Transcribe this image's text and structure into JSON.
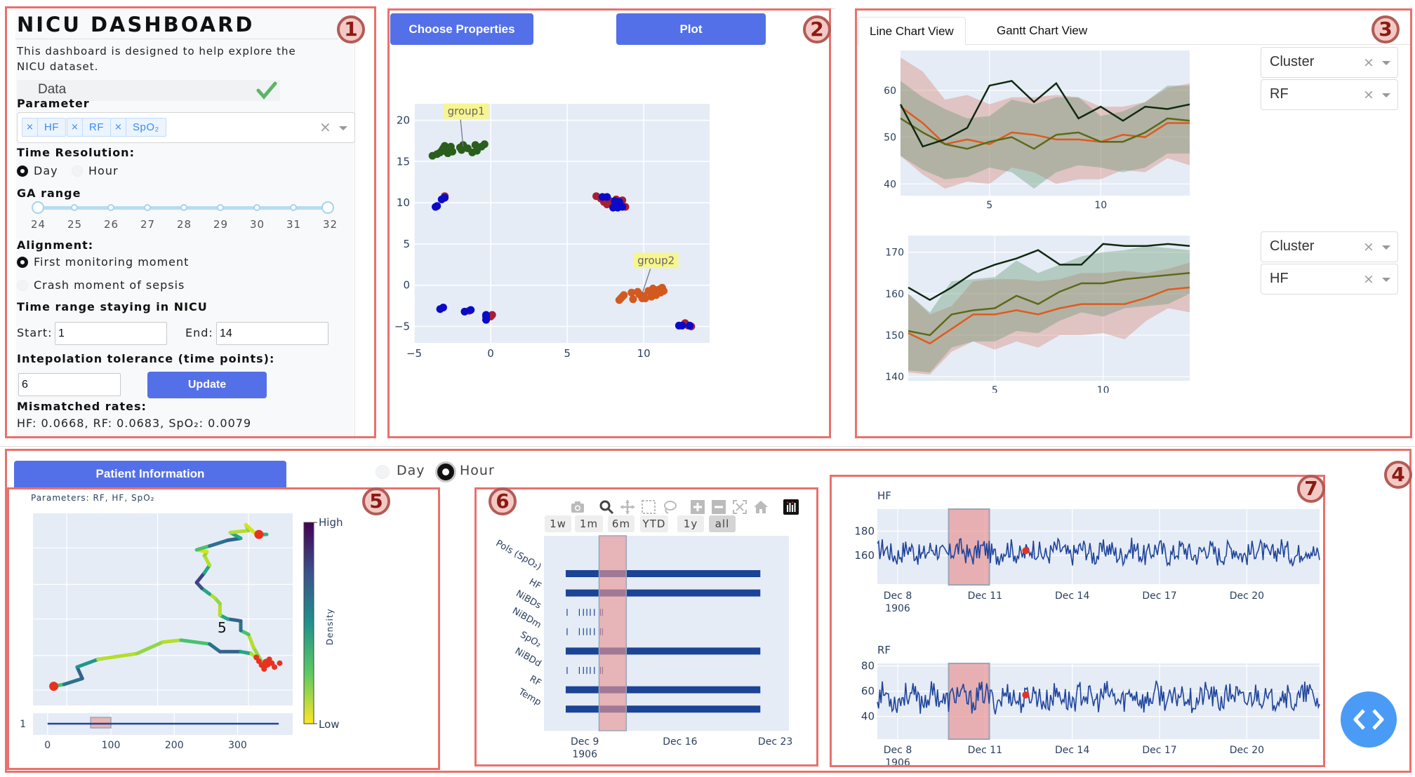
{
  "panel1": {
    "title": "NICU DASHBOARD",
    "description": "This dashboard is designed to help explore the NICU dataset.",
    "data_label": "Data",
    "data_status_icon": "checkmark-icon",
    "parameter_label": "Parameter",
    "parameter_tags": [
      "HF",
      "RF",
      "SpO₂"
    ],
    "time_resolution_label": "Time Resolution:",
    "time_resolution_options": [
      "Day",
      "Hour"
    ],
    "time_resolution_selected": "Day",
    "ga_range_label": "GA range",
    "ga_range_marks": [
      "24",
      "25",
      "26",
      "27",
      "28",
      "29",
      "30",
      "31",
      "32"
    ],
    "ga_range_value": [
      24,
      32
    ],
    "alignment_label": "Alignment:",
    "alignment_options": [
      "First monitoring moment",
      "Crash moment of sepsis"
    ],
    "alignment_selected": "First monitoring moment",
    "time_range_label": "Time range staying in NICU",
    "start_label": "Start:",
    "start_value": "1",
    "end_label": "End:",
    "end_value": "14",
    "interp_label": "Intepolation tolerance (time points):",
    "interp_value": "6",
    "update_button": "Update",
    "mismatch_label": "Mismatched rates:",
    "mismatch_values": "HF: 0.0668, RF: 0.0683, SpO₂: 0.0079"
  },
  "panel2": {
    "choose_button": "Choose Properties",
    "plot_button": "Plot"
  },
  "panel3": {
    "tabs": [
      "Line Chart View",
      "Gantt Chart View"
    ],
    "active_tab": "Line Chart View",
    "dropdowns": [
      {
        "group": "Cluster",
        "param": "RF"
      },
      {
        "group": "Cluster",
        "param": "HF"
      }
    ]
  },
  "panel4": {
    "patient_button": "Patient Information",
    "resolution_options": [
      "Day",
      "Hour"
    ],
    "resolution_selected": "Hour"
  },
  "panel5": {
    "subtitle": "Parameters: RF, HF, SpO₂",
    "center_label": "5",
    "colorbar_title": "Density",
    "colorbar_high": "High",
    "colorbar_low": "Low"
  },
  "panel6": {
    "modebar_icons": [
      "camera-icon",
      "zoom-icon",
      "pan-icon",
      "box-select-icon",
      "lasso-icon",
      "zoom-in-icon",
      "zoom-out-icon",
      "autoscale-icon",
      "home-icon",
      "plotly-logo-icon"
    ],
    "range_buttons": [
      "1w",
      "1m",
      "6m",
      "YTD",
      "1y",
      "all"
    ],
    "active_range": "all"
  },
  "region_badges": [
    "1",
    "2",
    "3",
    "4",
    "5",
    "6",
    "7"
  ],
  "colors": {
    "accent_blue": "#5470e8",
    "annotation_red": "#e8716d",
    "plot_bg": "#e5ecf6",
    "trace_blue": "#1f449c",
    "highlight": "#e8b4b4",
    "fab_blue": "#4a9bf5"
  },
  "chart_data": [
    {
      "id": "scatter",
      "type": "scatter",
      "title": "",
      "xlim": [
        -5,
        14.3
      ],
      "ylim": [
        -7,
        22
      ],
      "xticks": [
        -5,
        0,
        5,
        10
      ],
      "yticks": [
        -5,
        0,
        5,
        10,
        15,
        20
      ],
      "annotations": [
        {
          "text": "group1",
          "x": -1.8,
          "y": 16.8,
          "label_x": -1.6,
          "label_y": 21.1
        },
        {
          "text": "group2",
          "x": 9.9,
          "y": -1.0,
          "label_x": 10.8,
          "label_y": 3.0
        }
      ],
      "series": [
        {
          "name": "group1",
          "color": "#2a5e1c",
          "points": [
            [
              -3.8,
              15.7
            ],
            [
              -3.5,
              15.9
            ],
            [
              -3.3,
              16.1
            ],
            [
              -3.2,
              16.3
            ],
            [
              -3.1,
              16.6
            ],
            [
              -3.0,
              16.9
            ],
            [
              -2.9,
              16.2
            ],
            [
              -2.8,
              16.0
            ],
            [
              -2.7,
              16.5
            ],
            [
              -2.6,
              16.8
            ],
            [
              -2.5,
              16.2
            ],
            [
              -2.0,
              16.7
            ],
            [
              -1.8,
              17.0
            ],
            [
              -1.9,
              16.4
            ],
            [
              -1.2,
              16.1
            ],
            [
              -1.0,
              17.0
            ],
            [
              -0.9,
              16.3
            ],
            [
              -0.6,
              16.8
            ],
            [
              -0.4,
              17.1
            ],
            [
              -1.5,
              16.6
            ]
          ]
        },
        {
          "name": "group2",
          "color": "#d35a1f",
          "points": [
            [
              8.4,
              -1.8
            ],
            [
              8.5,
              -1.6
            ],
            [
              8.6,
              -1.4
            ],
            [
              8.7,
              -1.2
            ],
            [
              9.2,
              -0.9
            ],
            [
              9.3,
              -1.7
            ],
            [
              9.6,
              -0.8
            ],
            [
              9.7,
              -1.1
            ],
            [
              9.9,
              -1.6
            ],
            [
              10.0,
              -1.3
            ],
            [
              10.1,
              -1.6
            ],
            [
              10.3,
              -0.7
            ],
            [
              10.5,
              -1.0
            ],
            [
              10.6,
              -0.4
            ],
            [
              10.7,
              -0.8
            ],
            [
              10.8,
              -1.2
            ],
            [
              11.0,
              -0.5
            ],
            [
              11.1,
              -0.9
            ],
            [
              11.2,
              -0.3
            ],
            [
              11.3,
              -0.7
            ],
            [
              10.5,
              -1.4
            ]
          ]
        },
        {
          "name": "cluster-red",
          "color": "#a52033",
          "points": [
            [
              6.9,
              10.8
            ],
            [
              7.2,
              10.5
            ],
            [
              7.4,
              10.1
            ],
            [
              7.6,
              9.8
            ],
            [
              7.8,
              10.2
            ],
            [
              8.0,
              9.6
            ],
            [
              8.2,
              10.4
            ],
            [
              8.4,
              9.8
            ],
            [
              8.6,
              10.3
            ],
            [
              8.8,
              9.5
            ],
            [
              -3.0,
              10.8
            ],
            [
              0.1,
              -3.6
            ],
            [
              0.0,
              -3.8
            ],
            [
              -1.4,
              -3.1
            ],
            [
              12.7,
              -4.6
            ],
            [
              12.9,
              -4.9
            ],
            [
              13.1,
              -5.0
            ]
          ]
        },
        {
          "name": "cluster-blue",
          "color": "#0a0ac8",
          "points": [
            [
              7.3,
              10.7
            ],
            [
              7.6,
              10.7
            ],
            [
              8.1,
              10.2
            ],
            [
              8.4,
              10.1
            ],
            [
              8.6,
              9.5
            ],
            [
              8.0,
              9.4
            ],
            [
              8.3,
              9.4
            ],
            [
              -3.0,
              10.6
            ],
            [
              -3.2,
              10.4
            ],
            [
              -3.6,
              9.5
            ],
            [
              -3.5,
              9.6
            ],
            [
              -3.3,
              -2.9
            ],
            [
              -3.1,
              -2.7
            ],
            [
              -1.7,
              -3.2
            ],
            [
              -1.3,
              -3.0
            ],
            [
              -0.3,
              -3.8
            ],
            [
              -0.3,
              -4.2
            ],
            [
              -0.3,
              -3.6
            ],
            [
              12.3,
              -4.9
            ],
            [
              12.5,
              -4.9
            ],
            [
              13.0,
              -4.9
            ]
          ]
        }
      ]
    },
    {
      "id": "rf-band",
      "type": "area",
      "title": "RF",
      "xlim": [
        1,
        14
      ],
      "ylim": [
        37.5,
        68.5
      ],
      "xticks": [
        5,
        10
      ],
      "yticks": [
        40,
        50,
        60
      ],
      "x": [
        1,
        2,
        3,
        4,
        5,
        6,
        7,
        8,
        9,
        10,
        11,
        12,
        13,
        14
      ],
      "series": [
        {
          "name": "cluster-dark",
          "color": "#0f2a10",
          "values": [
            57,
            48,
            49.5,
            52,
            61,
            62,
            57.5,
            61.5,
            54,
            56.5,
            53.5,
            56.5,
            56,
            57
          ]
        },
        {
          "name": "cluster-olive",
          "color": "#5a6a1a",
          "values": [
            54,
            51,
            48.5,
            47.5,
            49,
            50,
            47.5,
            50.5,
            51,
            49,
            49,
            51,
            54,
            53.5
          ]
        },
        {
          "name": "cluster-orange",
          "color": "#e05a1e",
          "values": [
            56.5,
            53,
            48.5,
            49.5,
            48.5,
            51,
            50.5,
            49.5,
            49.5,
            49,
            50.5,
            50,
            53,
            53
          ]
        }
      ],
      "bands": [
        {
          "name": "orange-band",
          "color": "rgba(214,120,100,0.35)",
          "upper": [
            67,
            64,
            58,
            59,
            57,
            58.5,
            58.5,
            59,
            58.5,
            56.5,
            56.5,
            57.5,
            60.5,
            61.5
          ],
          "lower": [
            46,
            42,
            39,
            40.5,
            40,
            43.5,
            42.5,
            40,
            41,
            41,
            43,
            42.5,
            45.5,
            44
          ]
        },
        {
          "name": "green-band",
          "color": "rgba(100,150,110,0.38)",
          "upper": [
            62,
            58.5,
            56,
            54,
            54.5,
            58,
            57,
            58.5,
            58.5,
            54.5,
            55.5,
            57.5,
            61,
            61
          ],
          "lower": [
            46,
            43,
            41,
            41.5,
            43.5,
            42.5,
            39,
            42.5,
            44,
            43.5,
            42.5,
            43.5,
            46.5,
            46.5
          ]
        }
      ]
    },
    {
      "id": "hf-band",
      "type": "area",
      "title": "HF",
      "xlim": [
        1,
        14
      ],
      "ylim": [
        139,
        174
      ],
      "xticks": [
        5,
        10
      ],
      "yticks": [
        140,
        150,
        160,
        170
      ],
      "x": [
        1,
        2,
        3,
        4,
        5,
        6,
        7,
        8,
        9,
        10,
        11,
        12,
        13,
        14
      ],
      "series": [
        {
          "name": "cluster-dark",
          "color": "#0f2a10",
          "values": [
            161.5,
            158.5,
            161.5,
            165,
            167,
            168.5,
            170.5,
            167,
            167,
            172,
            171.5,
            171.5,
            172,
            171.5
          ]
        },
        {
          "name": "cluster-olive",
          "color": "#5a6a1a",
          "values": [
            151,
            150,
            155,
            156,
            156.5,
            159.5,
            157.5,
            160.5,
            162.5,
            162.5,
            163.5,
            164,
            164.5,
            165
          ]
        },
        {
          "name": "cluster-orange",
          "color": "#e05a1e",
          "values": [
            150.5,
            148,
            151.5,
            155,
            155,
            156,
            155,
            156.5,
            157.5,
            157.5,
            157.5,
            159,
            161,
            161.5
          ]
        }
      ],
      "bands": [
        {
          "name": "orange-band",
          "color": "rgba(214,120,100,0.35)",
          "upper": [
            160,
            155,
            157,
            163,
            163.5,
            163.5,
            163,
            163.5,
            165,
            165,
            165.5,
            165,
            166,
            167.5
          ],
          "lower": [
            141,
            140.5,
            146,
            148.5,
            146.5,
            148.5,
            147,
            150,
            150,
            150.5,
            149,
            153.5,
            156.5,
            155.5
          ]
        },
        {
          "name": "green-band",
          "color": "rgba(100,150,110,0.38)",
          "upper": [
            160,
            155.5,
            163,
            163.5,
            164,
            168,
            165,
            167,
            169,
            170,
            170.5,
            171.5,
            171,
            170.5
          ],
          "lower": [
            141.5,
            141,
            147,
            148.5,
            148.5,
            151,
            150.5,
            153.5,
            155.5,
            154.5,
            156.5,
            157,
            157.5,
            160
          ]
        }
      ]
    },
    {
      "id": "trajectory",
      "type": "line",
      "title": "Parameters: RF, HF, SpO₂",
      "xlim": [
        -23,
        387
      ],
      "xticks": [
        0,
        100,
        200,
        300
      ],
      "timeline_ytick": "1",
      "timeline_range": [
        0,
        365
      ],
      "timeline_highlight": [
        68,
        100
      ],
      "colorbar": {
        "title": "Density",
        "high": "High",
        "low": "Low",
        "colors": [
          "#fde725",
          "#5ec962",
          "#21918c",
          "#3b528b",
          "#440154"
        ]
      },
      "markers": [
        {
          "name": "start",
          "color": "#e8321f",
          "x": 0.08,
          "y": 0.9
        },
        {
          "name": "end",
          "color": "#e8321f",
          "x": 0.87,
          "y": 0.11
        },
        {
          "name": "cluster",
          "color": "#e8321f",
          "x": 0.9,
          "y": 0.78
        }
      ]
    },
    {
      "id": "gantt",
      "type": "bar",
      "xlim": [
        "1906-12-06",
        "1906-12-24"
      ],
      "xticks": [
        "Dec 9\n1906",
        "Dec 16",
        "Dec 23"
      ],
      "highlight": [
        "1906-12-10",
        "1906-12-12"
      ],
      "categories": [
        "Pols (SpO₂)",
        "HF",
        "NiBDs",
        "NiBDm",
        "SpO₂",
        "NiBDd",
        "RF",
        "Temp"
      ],
      "rows": [
        {
          "label": "Pols (SpO₂)",
          "kind": "bar",
          "start": 7.6,
          "end": 21.9
        },
        {
          "label": "HF",
          "kind": "bar",
          "start": 7.6,
          "end": 21.9
        },
        {
          "label": "NiBDs",
          "kind": "ticks",
          "ticks": [
            7.7,
            8.6,
            8.9,
            9.15,
            9.4,
            9.7,
            10.15,
            10.3
          ]
        },
        {
          "label": "NiBDm",
          "kind": "ticks",
          "ticks": [
            7.7,
            8.6,
            8.9,
            9.15,
            9.4,
            9.7,
            10.15,
            10.3
          ]
        },
        {
          "label": "SpO₂",
          "kind": "bar",
          "start": 7.6,
          "end": 21.9
        },
        {
          "label": "NiBDd",
          "kind": "ticks",
          "ticks": [
            7.7,
            8.6,
            8.9,
            9.15,
            9.4,
            9.7,
            10.15,
            10.3
          ]
        },
        {
          "label": "RF",
          "kind": "bar",
          "start": 7.6,
          "end": 21.9
        },
        {
          "label": "Temp",
          "kind": "bar",
          "start": 7.6,
          "end": 21.9
        }
      ]
    },
    {
      "id": "hf-series",
      "type": "line",
      "title": "HF",
      "ylim": [
        136,
        198
      ],
      "yticks": [
        160,
        180
      ],
      "xticks": [
        "Dec 8\n1906",
        "Dec 11",
        "Dec 14",
        "Dec 17",
        "Dec 20"
      ],
      "highlight_days": [
        9.75,
        11.15
      ],
      "marker": {
        "day": 12.4,
        "value": 164,
        "color": "#e8321f"
      },
      "day_range": [
        7.3,
        22.5
      ],
      "baseline": 163,
      "amplitude": 9
    },
    {
      "id": "rf-series",
      "type": "line",
      "title": "RF",
      "ylim": [
        22,
        82
      ],
      "yticks": [
        40,
        60,
        80
      ],
      "xticks": [
        "Dec 8\n1906",
        "Dec 11",
        "Dec 14",
        "Dec 17",
        "Dec 20"
      ],
      "highlight_days": [
        9.75,
        11.15
      ],
      "marker": {
        "day": 12.4,
        "value": 57,
        "color": "#e8321f"
      },
      "day_range": [
        7.3,
        22.5
      ],
      "baseline": 55,
      "amplitude": 10
    }
  ]
}
